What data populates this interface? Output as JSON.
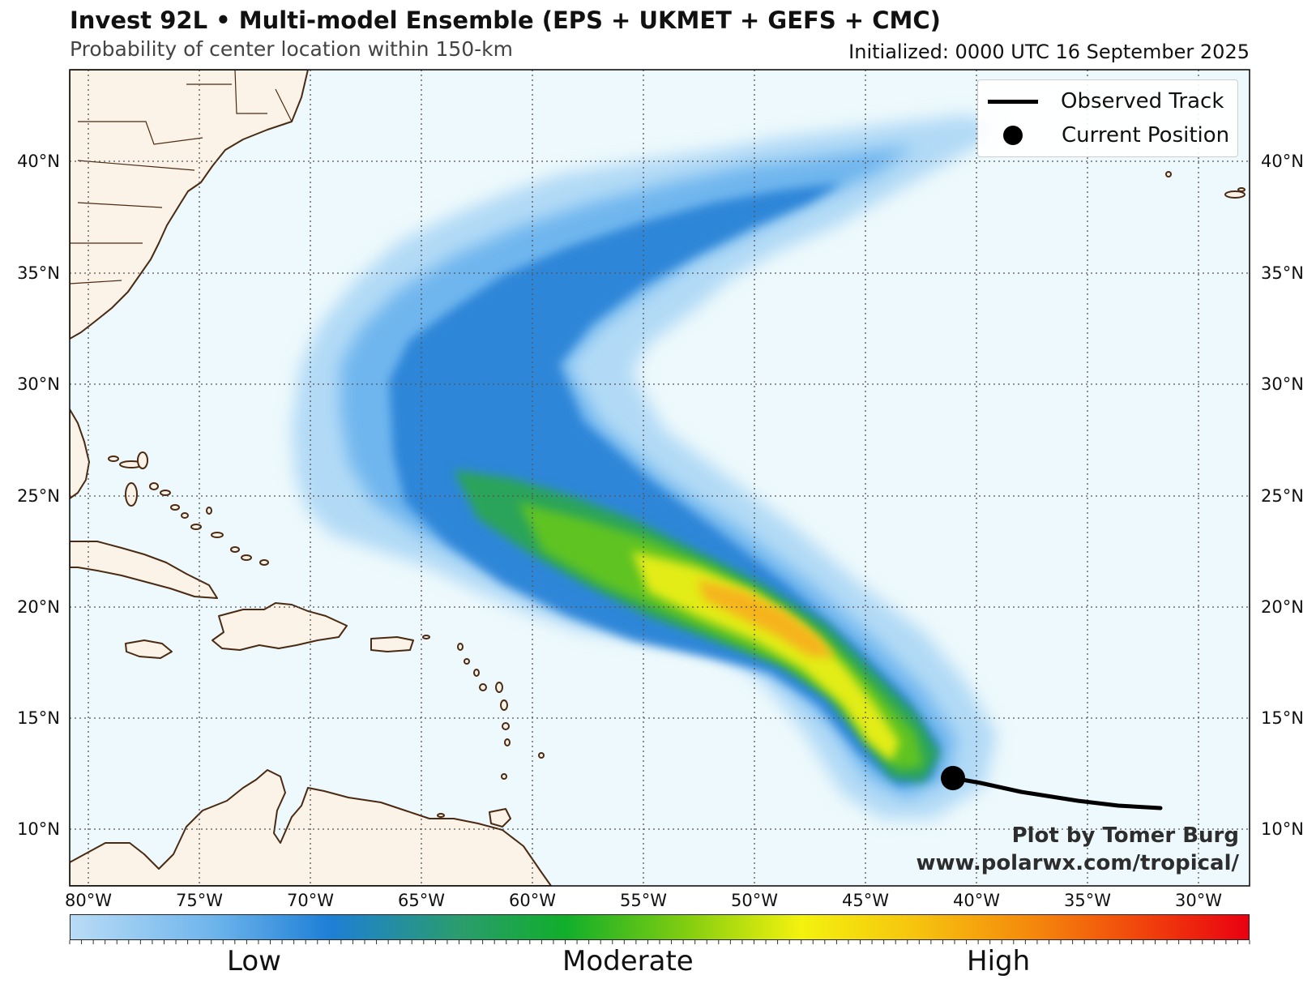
{
  "header": {
    "title": "Invest 92L • Multi-model Ensemble (EPS + UKMET + GEFS + CMC)",
    "subtitle": "Probability of center location within 150-km",
    "initialized": "Initialized: 0000 UTC 16 September 2025"
  },
  "map": {
    "lat_labels": [
      "10°N",
      "15°N",
      "20°N",
      "25°N",
      "30°N",
      "35°N",
      "40°N"
    ],
    "lon_labels": [
      "80°W",
      "75°W",
      "70°W",
      "65°W",
      "60°W",
      "55°W",
      "50°W",
      "45°W",
      "40°W",
      "35°W",
      "30°W"
    ],
    "colors": {
      "ocean": "#edf9fc",
      "land": "#fbf3e7",
      "coast": "#4a2a12",
      "gridline": "#555555"
    }
  },
  "legend": {
    "observed_track": "Observed Track",
    "current_position": "Current Position"
  },
  "credit": {
    "line1": "Plot by Tomer Burg",
    "line2": "www.polarwx.com/tropical/"
  },
  "colorbar": {
    "low": "Low",
    "moderate": "Moderate",
    "high": "High",
    "colors": [
      "#b9dcf6",
      "#1e7fd6",
      "#11ae2b",
      "#f4f20e",
      "#f5860c",
      "#ea0011"
    ]
  }
}
